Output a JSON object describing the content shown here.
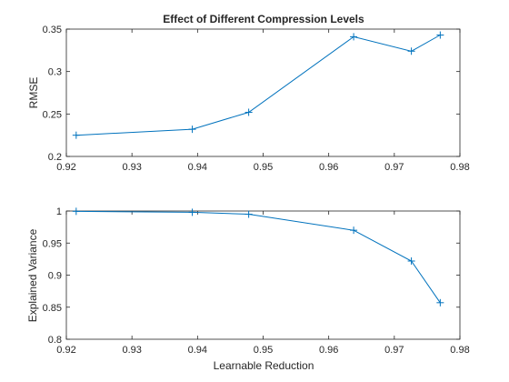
{
  "colors": {
    "line": "#0072BD",
    "axis": "#262626",
    "background": "#ffffff"
  },
  "chart_data": [
    {
      "type": "line",
      "title": "Effect of Different Compression Levels",
      "xlabel": "",
      "ylabel": "RMSE",
      "xlim": [
        0.92,
        0.98
      ],
      "ylim": [
        0.2,
        0.35
      ],
      "xticks": [
        0.92,
        0.93,
        0.94,
        0.95,
        0.96,
        0.97,
        0.98
      ],
      "xtick_labels": [
        "0.92",
        "0.93",
        "0.94",
        "0.95",
        "0.96",
        "0.97",
        "0.98"
      ],
      "yticks": [
        0.2,
        0.25,
        0.3,
        0.35
      ],
      "ytick_labels": [
        "0.2",
        "0.25",
        "0.3",
        "0.35"
      ],
      "marker": "+",
      "grid": false,
      "series": [
        {
          "x": [
            0.9215,
            0.9392,
            0.9478,
            0.9638,
            0.9726,
            0.977
          ],
          "y": [
            0.225,
            0.232,
            0.252,
            0.341,
            0.324,
            0.343
          ]
        }
      ]
    },
    {
      "type": "line",
      "title": "",
      "xlabel": "Learnable Reduction",
      "ylabel": "Explained Variance",
      "xlim": [
        0.92,
        0.98
      ],
      "ylim": [
        0.8,
        1.0
      ],
      "xticks": [
        0.92,
        0.93,
        0.94,
        0.95,
        0.96,
        0.97,
        0.98
      ],
      "xtick_labels": [
        "0.92",
        "0.93",
        "0.94",
        "0.95",
        "0.96",
        "0.97",
        "0.98"
      ],
      "yticks": [
        0.8,
        0.85,
        0.9,
        0.95,
        1.0
      ],
      "ytick_labels": [
        "0.8",
        "0.85",
        "0.9",
        "0.95",
        "1"
      ],
      "marker": "+",
      "grid": false,
      "series": [
        {
          "x": [
            0.9215,
            0.9392,
            0.9478,
            0.9638,
            0.9726,
            0.977
          ],
          "y": [
            0.9995,
            0.998,
            0.995,
            0.97,
            0.922,
            0.857
          ]
        }
      ]
    }
  ]
}
